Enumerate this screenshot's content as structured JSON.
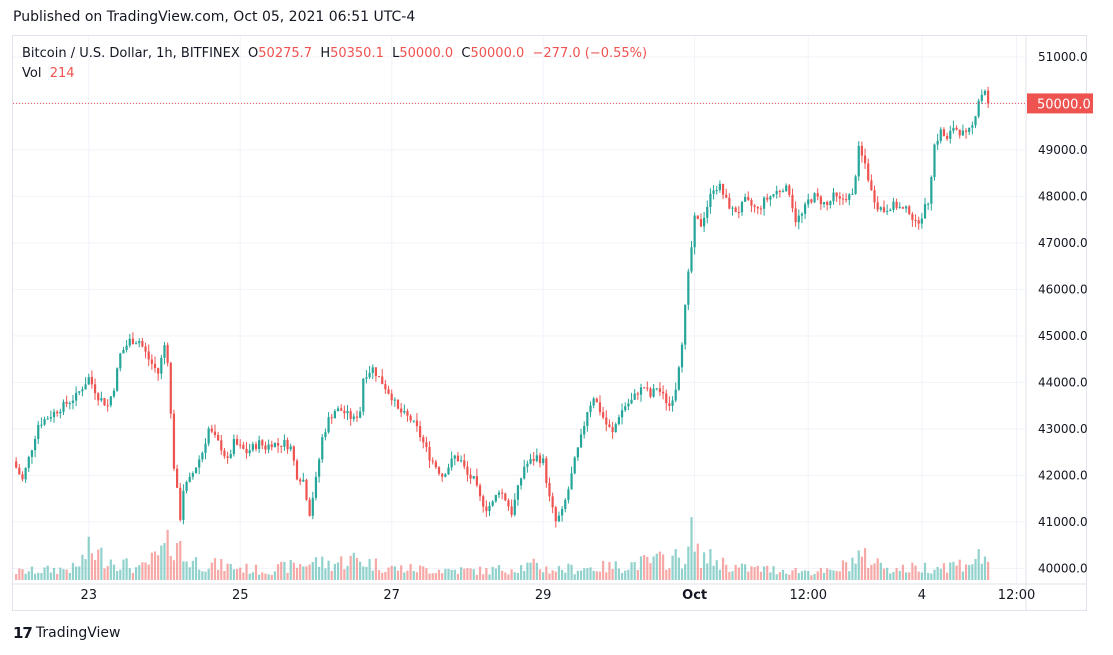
{
  "header": {
    "published": "Published on TradingView.com, Oct 05, 2021 06:51 UTC-4"
  },
  "legend": {
    "symbol": "Bitcoin / U.S. Dollar, 1h, BITFINEX",
    "o_label": "O",
    "o_value": "50275.7",
    "h_label": "H",
    "h_value": "50350.1",
    "l_label": "L",
    "l_value": "50000.0",
    "c_label": "C",
    "c_value": "50000.0",
    "change": "−277.0 (−0.55%)",
    "vol_label": "Vol",
    "vol_value": "214"
  },
  "price_label": "50000.0",
  "footer": {
    "brand": "TradingView",
    "logo": "17"
  },
  "colors": {
    "up": "#26a69a",
    "down": "#ef5350",
    "grid": "#f0f3fa",
    "axis_text": "#131722"
  },
  "chart_data": {
    "type": "candlestick",
    "title": "Bitcoin / U.S. Dollar, 1h, BITFINEX",
    "ylim": [
      39750,
      51450
    ],
    "y_ticks": [
      "51000.0",
      "50000.0",
      "49000.0",
      "48000.0",
      "47000.0",
      "46000.0",
      "45000.0",
      "44000.0",
      "43000.0",
      "42000.0",
      "41000.0",
      "40000.0"
    ],
    "x_tick_labels": [
      "23",
      "25",
      "27",
      "29",
      "Oct",
      "12:00",
      "4",
      "12:00"
    ],
    "x_tick_times": [
      24,
      72,
      120,
      168,
      216,
      252,
      288,
      318
    ],
    "time_range": [
      0,
      321
    ],
    "last_price": 50000.0,
    "grid": true,
    "close_anchors": [
      [
        0,
        42300
      ],
      [
        3,
        41900
      ],
      [
        6,
        42600
      ],
      [
        8,
        43100
      ],
      [
        12,
        43300
      ],
      [
        16,
        43500
      ],
      [
        20,
        43700
      ],
      [
        24,
        44100
      ],
      [
        27,
        43700
      ],
      [
        30,
        43500
      ],
      [
        32,
        43900
      ],
      [
        34,
        44600
      ],
      [
        37,
        44900
      ],
      [
        40,
        44900
      ],
      [
        43,
        44500
      ],
      [
        46,
        44200
      ],
      [
        48,
        44800
      ],
      [
        49,
        44500
      ],
      [
        50,
        43300
      ],
      [
        51,
        42200
      ],
      [
        53,
        41100
      ],
      [
        54,
        41700
      ],
      [
        56,
        41900
      ],
      [
        58,
        42200
      ],
      [
        60,
        42500
      ],
      [
        62,
        43000
      ],
      [
        64,
        42800
      ],
      [
        66,
        42600
      ],
      [
        68,
        42300
      ],
      [
        70,
        42700
      ],
      [
        72,
        42600
      ],
      [
        74,
        42500
      ],
      [
        76,
        42600
      ],
      [
        78,
        42700
      ],
      [
        80,
        42600
      ],
      [
        82,
        42700
      ],
      [
        84,
        42650
      ],
      [
        86,
        42700
      ],
      [
        88,
        42600
      ],
      [
        90,
        42000
      ],
      [
        92,
        41900
      ],
      [
        94,
        41200
      ],
      [
        96,
        41900
      ],
      [
        98,
        42800
      ],
      [
        100,
        43200
      ],
      [
        102,
        43400
      ],
      [
        104,
        43400
      ],
      [
        106,
        43300
      ],
      [
        108,
        43200
      ],
      [
        110,
        43400
      ],
      [
        111,
        44100
      ],
      [
        112,
        44200
      ],
      [
        114,
        44300
      ],
      [
        116,
        44100
      ],
      [
        118,
        43900
      ],
      [
        120,
        43700
      ],
      [
        122,
        43400
      ],
      [
        124,
        43300
      ],
      [
        126,
        43200
      ],
      [
        128,
        43000
      ],
      [
        130,
        42700
      ],
      [
        132,
        42400
      ],
      [
        134,
        42200
      ],
      [
        136,
        42000
      ],
      [
        138,
        42200
      ],
      [
        140,
        42400
      ],
      [
        142,
        42300
      ],
      [
        144,
        42000
      ],
      [
        146,
        41900
      ],
      [
        148,
        41500
      ],
      [
        150,
        41300
      ],
      [
        152,
        41400
      ],
      [
        154,
        41700
      ],
      [
        156,
        41500
      ],
      [
        158,
        41200
      ],
      [
        160,
        41700
      ],
      [
        162,
        42200
      ],
      [
        164,
        42300
      ],
      [
        166,
        42400
      ],
      [
        168,
        42300
      ],
      [
        170,
        41500
      ],
      [
        172,
        41000
      ],
      [
        174,
        41200
      ],
      [
        176,
        41700
      ],
      [
        178,
        42300
      ],
      [
        180,
        42800
      ],
      [
        182,
        43400
      ],
      [
        184,
        43700
      ],
      [
        186,
        43400
      ],
      [
        188,
        43100
      ],
      [
        190,
        42900
      ],
      [
        192,
        43300
      ],
      [
        194,
        43500
      ],
      [
        196,
        43600
      ],
      [
        198,
        43800
      ],
      [
        200,
        43900
      ],
      [
        202,
        43700
      ],
      [
        204,
        43900
      ],
      [
        206,
        43700
      ],
      [
        208,
        43500
      ],
      [
        210,
        43900
      ],
      [
        212,
        44900
      ],
      [
        214,
        46300
      ],
      [
        216,
        47500
      ],
      [
        218,
        47400
      ],
      [
        220,
        47800
      ],
      [
        222,
        48200
      ],
      [
        224,
        48200
      ],
      [
        226,
        47900
      ],
      [
        228,
        47700
      ],
      [
        230,
        47700
      ],
      [
        232,
        47900
      ],
      [
        234,
        47800
      ],
      [
        236,
        47700
      ],
      [
        238,
        47900
      ],
      [
        240,
        48000
      ],
      [
        242,
        48100
      ],
      [
        244,
        48200
      ],
      [
        246,
        48100
      ],
      [
        248,
        47500
      ],
      [
        250,
        47600
      ],
      [
        252,
        47900
      ],
      [
        254,
        48000
      ],
      [
        256,
        47900
      ],
      [
        258,
        47800
      ],
      [
        260,
        48000
      ],
      [
        262,
        47900
      ],
      [
        264,
        48000
      ],
      [
        266,
        48000
      ],
      [
        268,
        49000
      ],
      [
        270,
        48700
      ],
      [
        272,
        48100
      ],
      [
        274,
        47800
      ],
      [
        276,
        47700
      ],
      [
        278,
        47800
      ],
      [
        280,
        47800
      ],
      [
        282,
        47700
      ],
      [
        284,
        47700
      ],
      [
        286,
        47400
      ],
      [
        288,
        47600
      ],
      [
        290,
        47900
      ],
      [
        292,
        49100
      ],
      [
        294,
        49400
      ],
      [
        296,
        49200
      ],
      [
        298,
        49500
      ],
      [
        300,
        49400
      ],
      [
        302,
        49300
      ],
      [
        304,
        49500
      ],
      [
        306,
        50100
      ],
      [
        308,
        50300
      ],
      [
        309,
        50000
      ]
    ],
    "volume_anchors": [
      [
        0,
        60
      ],
      [
        20,
        90
      ],
      [
        24,
        220
      ],
      [
        40,
        80
      ],
      [
        46,
        180
      ],
      [
        50,
        280
      ],
      [
        52,
        320
      ],
      [
        54,
        160
      ],
      [
        62,
        120
      ],
      [
        80,
        70
      ],
      [
        96,
        140
      ],
      [
        100,
        120
      ],
      [
        108,
        160
      ],
      [
        120,
        90
      ],
      [
        150,
        70
      ],
      [
        165,
        110
      ],
      [
        170,
        80
      ],
      [
        190,
        100
      ],
      [
        214,
        180
      ],
      [
        215,
        440
      ],
      [
        216,
        200
      ],
      [
        230,
        90
      ],
      [
        260,
        60
      ],
      [
        268,
        180
      ],
      [
        280,
        80
      ],
      [
        300,
        120
      ],
      [
        309,
        190
      ]
    ]
  }
}
